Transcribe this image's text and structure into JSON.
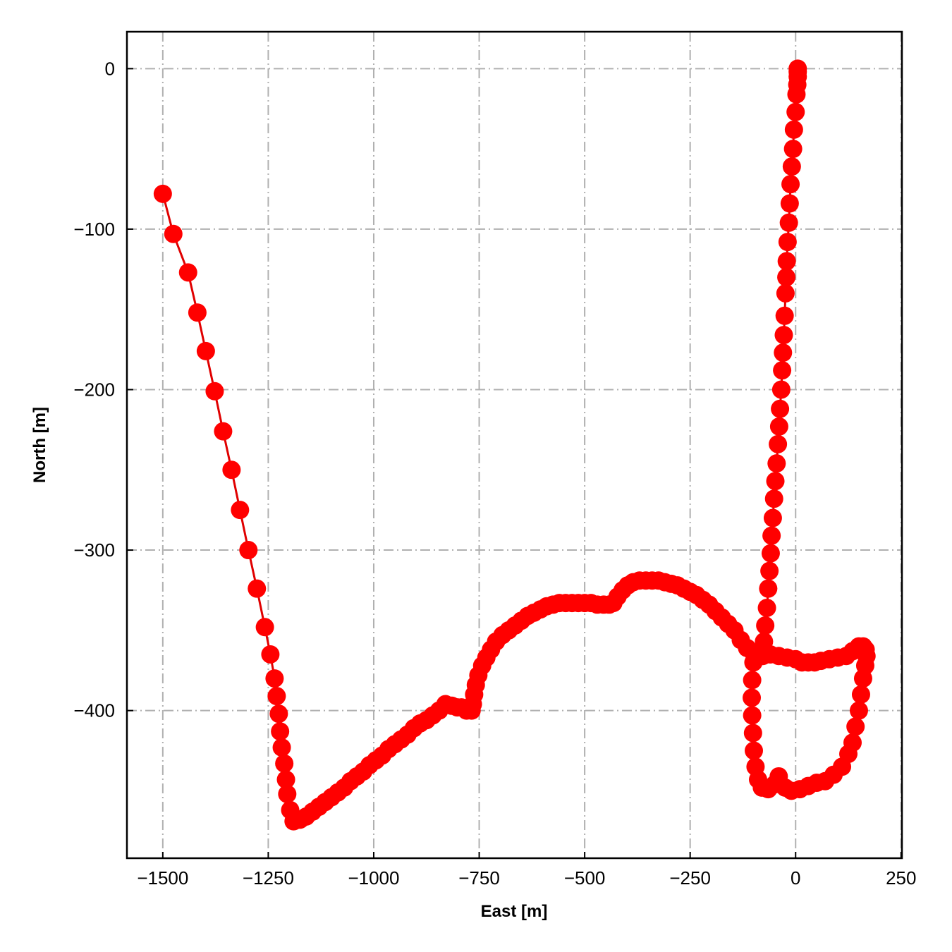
{
  "chart_data": {
    "type": "line",
    "title": "",
    "xlabel": "East [m]",
    "ylabel": "North [m]",
    "xlim": [
      -1585,
      252
    ],
    "ylim": [
      -492,
      23
    ],
    "xticks": [
      -1500,
      -1250,
      -1000,
      -750,
      -500,
      -250,
      0,
      250
    ],
    "yticks": [
      0,
      -100,
      -200,
      -300,
      -400
    ],
    "xtick_labels": [
      "−1500",
      "−1250",
      "−1000",
      "−750",
      "−500",
      "−250",
      "0",
      "250"
    ],
    "ytick_labels": [
      "0",
      "−100",
      "−200",
      "−300",
      "−400"
    ],
    "grid": true,
    "grid_style": "dash-dot",
    "legend": "none",
    "colors": {
      "series": "#ff0000",
      "line": "#e00000",
      "grid": "#b0b0b0",
      "axes": "#000000"
    },
    "series": [
      {
        "marker": "circle",
        "points": [
          [
            5,
            0
          ],
          [
            5,
            -2
          ],
          [
            5,
            -5
          ],
          [
            4,
            -10
          ],
          [
            2,
            -16
          ],
          [
            0,
            -27
          ],
          [
            -4,
            -38
          ],
          [
            -6,
            -50
          ],
          [
            -9,
            -61
          ],
          [
            -12,
            -72
          ],
          [
            -14,
            -84
          ],
          [
            -16,
            -96
          ],
          [
            -19,
            -108
          ],
          [
            -21,
            -120
          ],
          [
            -22,
            -130
          ],
          [
            -24,
            -140
          ],
          [
            -26,
            -154
          ],
          [
            -28,
            -166
          ],
          [
            -30,
            -177
          ],
          [
            -32,
            -188
          ],
          [
            -34,
            -200
          ],
          [
            -37,
            -212
          ],
          [
            -39,
            -223
          ],
          [
            -42,
            -234
          ],
          [
            -45,
            -246
          ],
          [
            -48,
            -257
          ],
          [
            -51,
            -268
          ],
          [
            -54,
            -280
          ],
          [
            -57,
            -291
          ],
          [
            -59,
            -302
          ],
          [
            -62,
            -313
          ],
          [
            -65,
            -324
          ],
          [
            -68,
            -336
          ],
          [
            -72,
            -347
          ],
          [
            -75,
            -357
          ],
          [
            -78,
            -366
          ],
          [
            -100,
            -370
          ],
          [
            -103,
            -381
          ],
          [
            -104,
            -392
          ],
          [
            -103,
            -403
          ],
          [
            -101,
            -414
          ],
          [
            -99,
            -425
          ],
          [
            -95,
            -435
          ],
          [
            -89,
            -443
          ],
          [
            -80,
            -448
          ],
          [
            -65,
            -449
          ],
          [
            -50,
            -446
          ],
          [
            -40,
            -441
          ],
          [
            -25,
            -448
          ],
          [
            -10,
            -450
          ],
          [
            10,
            -449
          ],
          [
            30,
            -447
          ],
          [
            50,
            -445
          ],
          [
            70,
            -444
          ],
          [
            90,
            -440
          ],
          [
            110,
            -435
          ],
          [
            125,
            -427
          ],
          [
            135,
            -420
          ],
          [
            142,
            -410
          ],
          [
            150,
            -400
          ],
          [
            155,
            -390
          ],
          [
            160,
            -380
          ],
          [
            165,
            -372
          ],
          [
            168,
            -366
          ],
          [
            166,
            -362
          ],
          [
            160,
            -360
          ],
          [
            150,
            -360
          ],
          [
            135,
            -363
          ],
          [
            120,
            -366
          ],
          [
            100,
            -367
          ],
          [
            80,
            -368
          ],
          [
            60,
            -369
          ],
          [
            45,
            -370
          ],
          [
            30,
            -370
          ],
          [
            15,
            -370
          ],
          [
            0,
            -368
          ],
          [
            -20,
            -367
          ],
          [
            -40,
            -366
          ],
          [
            -60,
            -365
          ],
          [
            -80,
            -364
          ],
          [
            -100,
            -364
          ],
          [
            -115,
            -361
          ],
          [
            -130,
            -356
          ],
          [
            -145,
            -350
          ],
          [
            -160,
            -346
          ],
          [
            -175,
            -342
          ],
          [
            -190,
            -338
          ],
          [
            -205,
            -334
          ],
          [
            -220,
            -331
          ],
          [
            -235,
            -328
          ],
          [
            -250,
            -326
          ],
          [
            -265,
            -324
          ],
          [
            -280,
            -322
          ],
          [
            -295,
            -321
          ],
          [
            -310,
            -320
          ],
          [
            -325,
            -319
          ],
          [
            -340,
            -319
          ],
          [
            -355,
            -319
          ],
          [
            -370,
            -319
          ],
          [
            -385,
            -320
          ],
          [
            -398,
            -322
          ],
          [
            -410,
            -325
          ],
          [
            -422,
            -329
          ],
          [
            -432,
            -333
          ],
          [
            -442,
            -334
          ],
          [
            -455,
            -334
          ],
          [
            -470,
            -334
          ],
          [
            -485,
            -333
          ],
          [
            -500,
            -333
          ],
          [
            -515,
            -333
          ],
          [
            -530,
            -333
          ],
          [
            -545,
            -333
          ],
          [
            -560,
            -333
          ],
          [
            -575,
            -334
          ],
          [
            -590,
            -335
          ],
          [
            -605,
            -337
          ],
          [
            -620,
            -339
          ],
          [
            -635,
            -341
          ],
          [
            -650,
            -344
          ],
          [
            -665,
            -347
          ],
          [
            -680,
            -350
          ],
          [
            -695,
            -353
          ],
          [
            -710,
            -357
          ],
          [
            -722,
            -362
          ],
          [
            -733,
            -367
          ],
          [
            -743,
            -372
          ],
          [
            -752,
            -378
          ],
          [
            -758,
            -384
          ],
          [
            -762,
            -390
          ],
          [
            -765,
            -396
          ],
          [
            -768,
            -400
          ],
          [
            -780,
            -400
          ],
          [
            -792,
            -398
          ],
          [
            -802,
            -398
          ],
          [
            -815,
            -397
          ],
          [
            -830,
            -396
          ],
          [
            -845,
            -400
          ],
          [
            -860,
            -403
          ],
          [
            -875,
            -406
          ],
          [
            -890,
            -408
          ],
          [
            -905,
            -411
          ],
          [
            -920,
            -415
          ],
          [
            -935,
            -418
          ],
          [
            -950,
            -421
          ],
          [
            -965,
            -424
          ],
          [
            -980,
            -428
          ],
          [
            -995,
            -431
          ],
          [
            -1010,
            -434
          ],
          [
            -1025,
            -438
          ],
          [
            -1040,
            -441
          ],
          [
            -1055,
            -444
          ],
          [
            -1070,
            -448
          ],
          [
            -1085,
            -451
          ],
          [
            -1100,
            -454
          ],
          [
            -1115,
            -457
          ],
          [
            -1130,
            -460
          ],
          [
            -1145,
            -463
          ],
          [
            -1160,
            -466
          ],
          [
            -1175,
            -468
          ],
          [
            -1190,
            -469
          ],
          [
            -1198,
            -462
          ],
          [
            -1205,
            -452
          ],
          [
            -1208,
            -443
          ],
          [
            -1212,
            -433
          ],
          [
            -1218,
            -423
          ],
          [
            -1222,
            -413
          ],
          [
            -1225,
            -402
          ],
          [
            -1230,
            -391
          ],
          [
            -1235,
            -380
          ],
          [
            -1245,
            -365
          ],
          [
            -1258,
            -348
          ],
          [
            -1277,
            -324
          ],
          [
            -1297,
            -300
          ],
          [
            -1317,
            -275
          ],
          [
            -1337,
            -250
          ],
          [
            -1357,
            -226
          ],
          [
            -1377,
            -201
          ],
          [
            -1398,
            -176
          ],
          [
            -1418,
            -152
          ],
          [
            -1440,
            -127
          ],
          [
            -1475,
            -103
          ],
          [
            -1500,
            -78
          ]
        ]
      }
    ]
  }
}
